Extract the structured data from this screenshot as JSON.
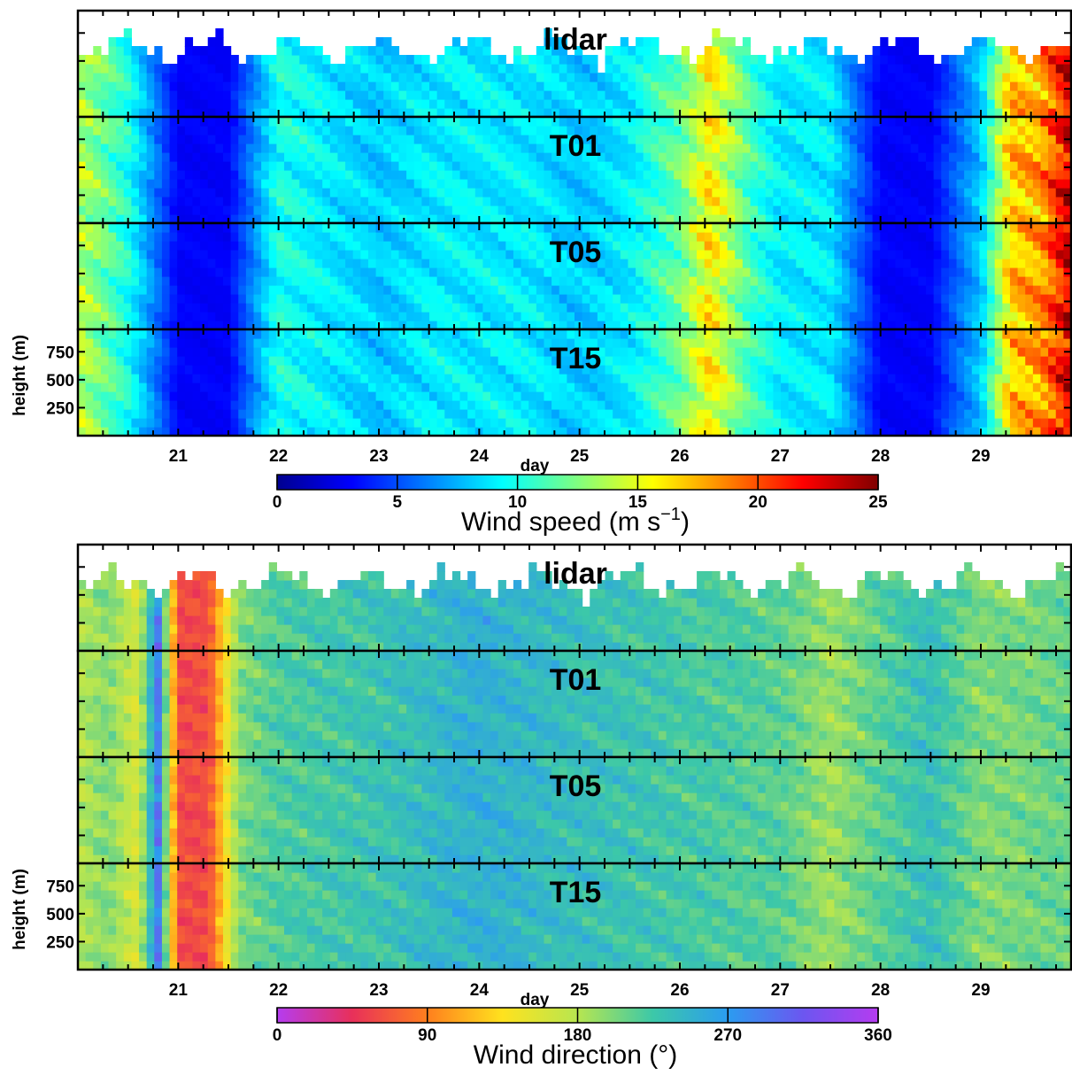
{
  "chart_data": [
    {
      "type": "heatmap",
      "quantity": "wind_speed",
      "xlabel": "day",
      "ylabel": "height (m)",
      "xlim": [
        20,
        29.9
      ],
      "ylim": [
        0,
        950
      ],
      "x_ticks": [
        21,
        22,
        23,
        24,
        25,
        26,
        27,
        28,
        29
      ],
      "y_ticks": [
        250,
        500,
        750
      ],
      "panels": [
        {
          "name": "lidar",
          "label": "lidar",
          "has_gaps": true
        },
        {
          "name": "T01",
          "label": "T01",
          "has_gaps": false
        },
        {
          "name": "T05",
          "label": "T05",
          "has_gaps": false
        },
        {
          "name": "T15",
          "label": "T15",
          "has_gaps": false
        }
      ],
      "profile_days": [
        20.0,
        20.5,
        21.0,
        21.5,
        22.0,
        22.5,
        23.0,
        23.5,
        24.0,
        24.5,
        25.0,
        25.5,
        26.0,
        26.3,
        26.7,
        27.0,
        27.5,
        28.0,
        28.5,
        29.0,
        29.3,
        29.6,
        29.9
      ],
      "profile_values": [
        14,
        10,
        3,
        3,
        10,
        9,
        8,
        9,
        9,
        9,
        8,
        9,
        12,
        16,
        11,
        9,
        9,
        3,
        3,
        8,
        17,
        18,
        23
      ],
      "colorbar": {
        "label": "Wind speed (m s",
        "label_sup": "−1",
        "label_end": ")",
        "range": [
          0,
          25
        ],
        "ticks": [
          "0",
          "5",
          "10",
          "15",
          "20",
          "25"
        ],
        "colormap": "jet",
        "stops": [
          "#00008f",
          "#0000ff",
          "#0080ff",
          "#00ffff",
          "#80ff80",
          "#ffff00",
          "#ff8000",
          "#ff0000",
          "#800000"
        ]
      }
    },
    {
      "type": "heatmap",
      "quantity": "wind_direction",
      "xlabel": "day",
      "ylabel": "height (m)",
      "xlim": [
        20,
        29.9
      ],
      "ylim": [
        0,
        950
      ],
      "x_ticks": [
        21,
        22,
        23,
        24,
        25,
        26,
        27,
        28,
        29
      ],
      "y_ticks": [
        250,
        500,
        750
      ],
      "panels": [
        {
          "name": "lidar",
          "label": "lidar",
          "has_gaps": true
        },
        {
          "name": "T01",
          "label": "T01",
          "has_gaps": false
        },
        {
          "name": "T05",
          "label": "T05",
          "has_gaps": false
        },
        {
          "name": "T15",
          "label": "T15",
          "has_gaps": false
        }
      ],
      "profile_days": [
        20.0,
        20.3,
        20.6,
        20.8,
        21.0,
        21.3,
        21.6,
        22.0,
        23.0,
        24.0,
        25.0,
        26.0,
        27.0,
        27.5,
        28.0,
        28.5,
        29.0,
        29.9
      ],
      "profile_values": [
        180,
        200,
        160,
        290,
        60,
        60,
        200,
        220,
        230,
        250,
        235,
        225,
        215,
        190,
        215,
        235,
        200,
        210
      ],
      "colorbar": {
        "label": "Wind direction (°)",
        "range": [
          0,
          360
        ],
        "ticks": [
          "0",
          "90",
          "180",
          "270",
          "360"
        ],
        "colormap": "hsv-like",
        "stops": [
          "#b53cf0",
          "#e8305a",
          "#ff7f1e",
          "#ffe21e",
          "#b7e650",
          "#3cc8a8",
          "#2b9cf0",
          "#6c56f0",
          "#b53cf0"
        ]
      }
    }
  ]
}
